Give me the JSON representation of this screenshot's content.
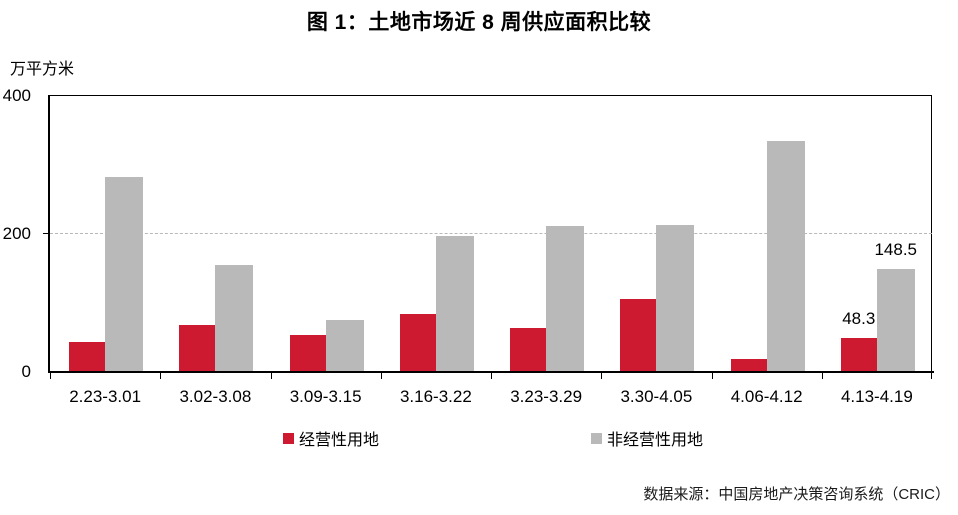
{
  "title": "图 1：土地市场近 8 周供应面积比较",
  "unit_label": "万平方米",
  "footer": "数据来源：中国房地产决策咨询系统（CRIC）",
  "colors": {
    "series_primary": "#CE1A31",
    "series_secondary": "#B9B9B9",
    "gridline": "#B8B8B8",
    "axis": "#000000"
  },
  "chart_data": {
    "type": "bar",
    "title": "图 1：土地市场近 8 周供应面积比较",
    "ylabel": "万平方米",
    "xlabel": "",
    "ylim": [
      0,
      400
    ],
    "yticks": [
      0,
      200,
      400
    ],
    "grid": "horizontal dashed gridline at 200 only",
    "legend_position": "bottom",
    "categories": [
      "2.23-3.01",
      "3.02-3.08",
      "3.09-3.15",
      "3.16-3.22",
      "3.23-3.29",
      "3.30-4.05",
      "4.06-4.12",
      "4.13-4.19"
    ],
    "series": [
      {
        "name": "经营性用地",
        "color": "#CE1A31",
        "values": [
          42,
          67,
          52,
          82,
          63,
          105,
          17,
          48.3
        ],
        "labels": [
          "",
          "",
          "",
          "",
          "",
          "",
          "",
          "48.3"
        ]
      },
      {
        "name": "非经营性用地",
        "color": "#B9B9B9",
        "values": [
          281,
          153,
          74,
          196,
          210,
          212,
          334,
          148.5
        ],
        "labels": [
          "",
          "",
          "",
          "",
          "",
          "",
          "",
          "148.5"
        ]
      }
    ]
  }
}
